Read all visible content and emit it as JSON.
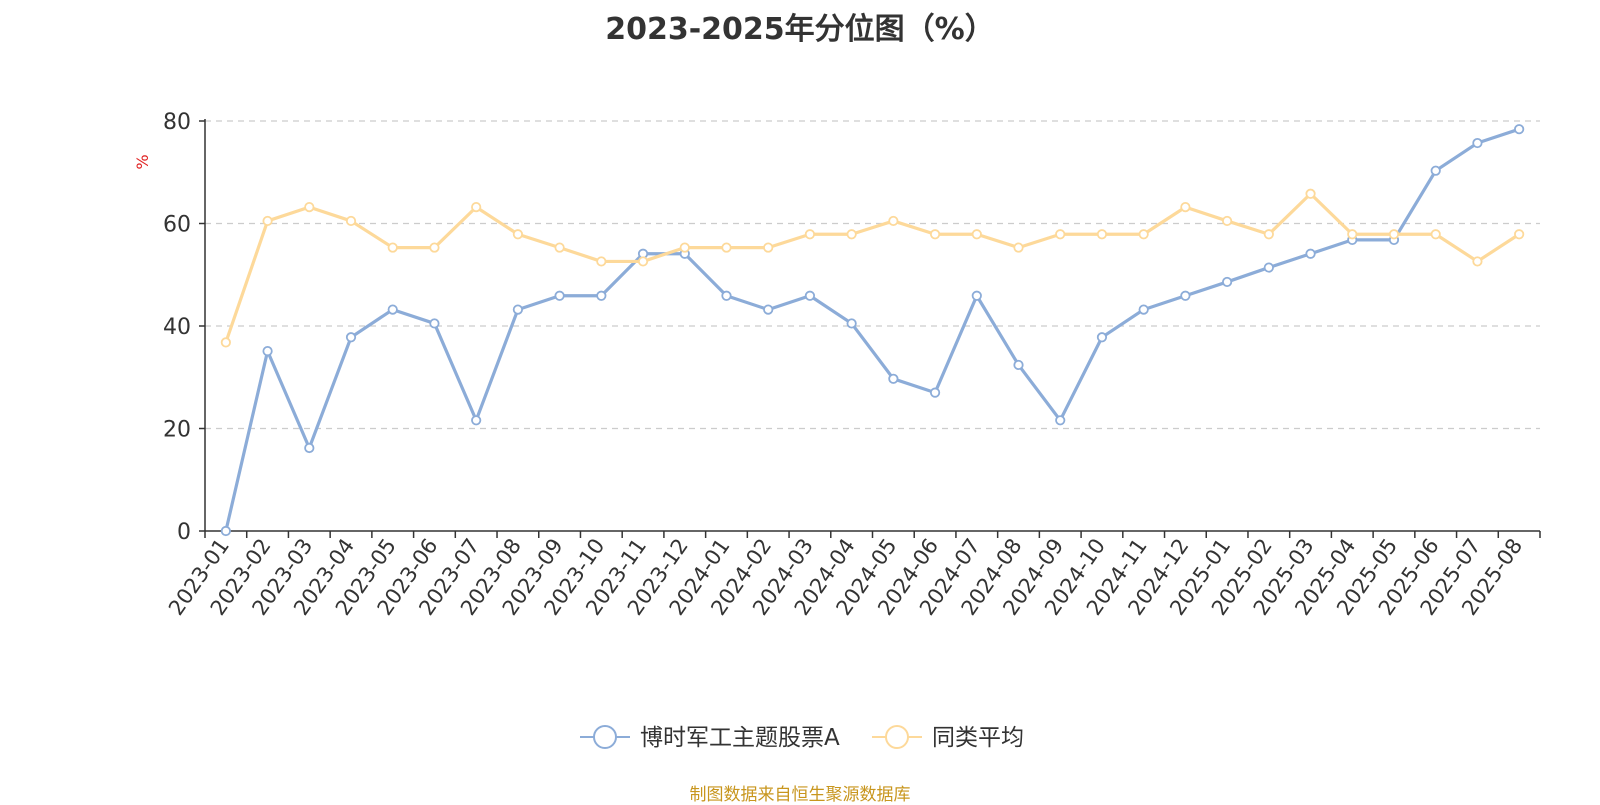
{
  "source_note": "制图数据来自恒生聚源数据库",
  "colors": {
    "series_a": "#8cacd8",
    "series_b": "#fdd99a",
    "axis": "#333333",
    "grid": "#cccccc",
    "ylabel": "#e02020"
  },
  "chart_data": {
    "type": "line",
    "title": "2023-2025年分位图（%）",
    "xlabel": "",
    "ylabel": "%",
    "ylim": [
      0,
      80
    ],
    "yticks": [
      0,
      20,
      40,
      60,
      80
    ],
    "grid": true,
    "legend_position": "bottom-center",
    "categories": [
      "2023-01",
      "2023-02",
      "2023-03",
      "2023-04",
      "2023-05",
      "2023-06",
      "2023-07",
      "2023-08",
      "2023-09",
      "2023-10",
      "2023-11",
      "2023-12",
      "2024-01",
      "2024-02",
      "2024-03",
      "2024-04",
      "2024-05",
      "2024-06",
      "2024-07",
      "2024-08",
      "2024-09",
      "2024-10",
      "2024-11",
      "2024-12",
      "2025-01",
      "2025-02",
      "2025-03",
      "2025-04",
      "2025-05",
      "2025-06",
      "2025-07",
      "2025-08"
    ],
    "series": [
      {
        "name": "博时军工主题股票A",
        "values": [
          0,
          35.1,
          16.2,
          37.8,
          43.2,
          40.5,
          21.6,
          43.2,
          45.9,
          45.9,
          54.1,
          54.1,
          45.9,
          43.2,
          45.9,
          40.5,
          29.7,
          27.0,
          45.9,
          32.4,
          21.6,
          37.8,
          43.2,
          45.9,
          48.6,
          51.4,
          54.1,
          56.8,
          56.8,
          70.3,
          75.7,
          78.4
        ]
      },
      {
        "name": "同类平均",
        "values": [
          36.8,
          60.5,
          63.2,
          60.5,
          55.3,
          55.3,
          63.2,
          57.9,
          55.3,
          52.6,
          52.6,
          55.3,
          55.3,
          55.3,
          57.9,
          57.9,
          60.5,
          57.9,
          57.9,
          55.3,
          57.9,
          57.9,
          57.9,
          63.2,
          60.5,
          57.9,
          65.8,
          57.9,
          57.9,
          57.9,
          52.6,
          57.9
        ]
      }
    ]
  }
}
